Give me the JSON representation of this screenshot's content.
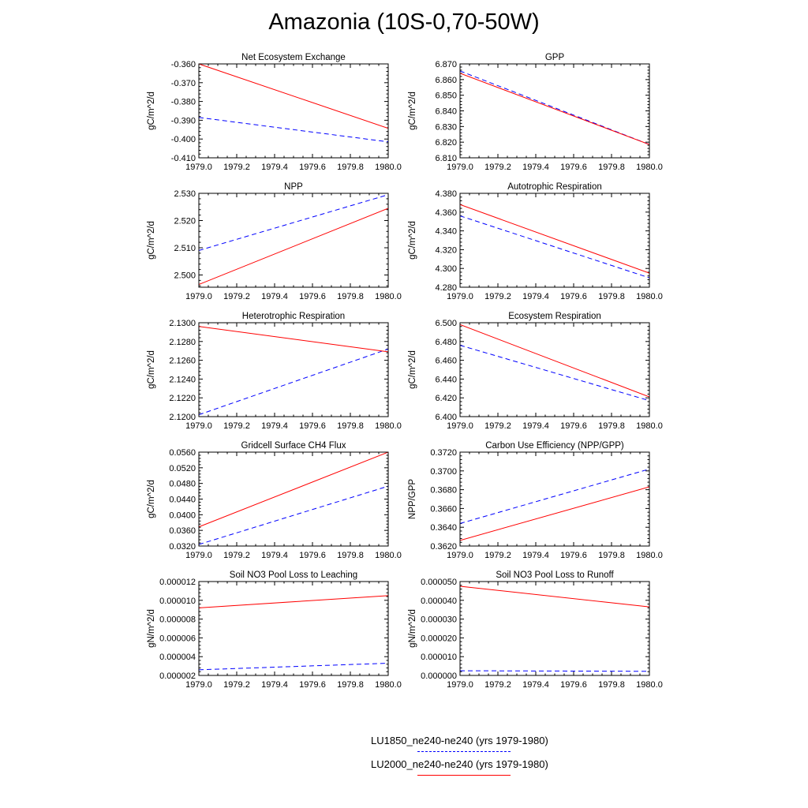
{
  "title": "Amazonia (10S-0,70-50W)",
  "colors": {
    "LU1850": "#0000ff",
    "LU2000": "#ff0000",
    "axis": "#000000"
  },
  "legend": [
    {
      "label": "LU1850_ne240-ne240 (yrs 1979-1980)",
      "color": "#0000ff",
      "style": "dashed"
    },
    {
      "label": "LU2000_ne240-ne240 (yrs 1979-1980)",
      "color": "#ff0000",
      "style": "solid"
    }
  ],
  "chart_data": [
    {
      "type": "line",
      "title": "Net Ecosystem Exchange",
      "ylabel": "gC/m^2/d",
      "xlim": [
        1979.0,
        1980.0
      ],
      "ylim": [
        -0.41,
        -0.36
      ],
      "xticks": [
        "1979.0",
        "1979.2",
        "1979.4",
        "1979.6",
        "1979.8",
        "1980.0"
      ],
      "yticks": [
        "-0.410",
        "-0.400",
        "-0.390",
        "-0.380",
        "-0.370",
        "-0.360"
      ],
      "x": [
        1979.0,
        1980.0
      ],
      "series": [
        {
          "name": "LU1850_ne240-ne240 (yrs 1979-1980)",
          "style": "dashed",
          "values": [
            -0.3885,
            -0.4015
          ]
        },
        {
          "name": "LU2000_ne240-ne240 (yrs 1979-1980)",
          "style": "solid",
          "values": [
            -0.36,
            -0.3943
          ]
        }
      ]
    },
    {
      "type": "line",
      "title": "GPP",
      "ylabel": "gC/m^2/d",
      "xlim": [
        1979.0,
        1980.0
      ],
      "ylim": [
        6.81,
        6.87
      ],
      "xticks": [
        "1979.0",
        "1979.2",
        "1979.4",
        "1979.6",
        "1979.8",
        "1980.0"
      ],
      "yticks": [
        "6.810",
        "6.820",
        "6.830",
        "6.840",
        "6.850",
        "6.860",
        "6.870"
      ],
      "x": [
        1979.0,
        1980.0
      ],
      "series": [
        {
          "name": "LU1850_ne240-ne240 (yrs 1979-1980)",
          "style": "dashed",
          "values": [
            6.8655,
            6.8185
          ]
        },
        {
          "name": "LU2000_ne240-ne240 (yrs 1979-1980)",
          "style": "solid",
          "values": [
            6.864,
            6.8185
          ]
        }
      ]
    },
    {
      "type": "line",
      "title": "NPP",
      "ylabel": "gC/m^2/d",
      "xlim": [
        1979.0,
        1980.0
      ],
      "ylim": [
        2.4955,
        2.53
      ],
      "xticks": [
        "1979.0",
        "1979.2",
        "1979.4",
        "1979.6",
        "1979.8",
        "1980.0"
      ],
      "yticks": [
        "2.500",
        "2.510",
        "2.520",
        "2.530"
      ],
      "x": [
        1979.0,
        1980.0
      ],
      "series": [
        {
          "name": "LU1850_ne240-ne240 (yrs 1979-1980)",
          "style": "dashed",
          "values": [
            2.509,
            2.5295
          ]
        },
        {
          "name": "LU2000_ne240-ne240 (yrs 1979-1980)",
          "style": "solid",
          "values": [
            2.4965,
            2.5245
          ]
        }
      ]
    },
    {
      "type": "line",
      "title": "Autotrophic Respiration",
      "ylabel": "gC/m^2/d",
      "xlim": [
        1979.0,
        1980.0
      ],
      "ylim": [
        4.28,
        4.38
      ],
      "xticks": [
        "1979.0",
        "1979.2",
        "1979.4",
        "1979.6",
        "1979.8",
        "1980.0"
      ],
      "yticks": [
        "4.280",
        "4.300",
        "4.320",
        "4.340",
        "4.360",
        "4.380"
      ],
      "x": [
        1979.0,
        1980.0
      ],
      "series": [
        {
          "name": "LU1850_ne240-ne240 (yrs 1979-1980)",
          "style": "dashed",
          "values": [
            4.356,
            4.29
          ]
        },
        {
          "name": "LU2000_ne240-ne240 (yrs 1979-1980)",
          "style": "solid",
          "values": [
            4.368,
            4.295
          ]
        }
      ]
    },
    {
      "type": "line",
      "title": "Heterotrophic Respiration",
      "ylabel": "gC/m^2/d",
      "xlim": [
        1979.0,
        1980.0
      ],
      "ylim": [
        2.12,
        2.13
      ],
      "xticks": [
        "1979.0",
        "1979.2",
        "1979.4",
        "1979.6",
        "1979.8",
        "1980.0"
      ],
      "yticks": [
        "2.1200",
        "2.1220",
        "2.1240",
        "2.1260",
        "2.1280",
        "2.1300"
      ],
      "x": [
        1979.0,
        1980.0
      ],
      "series": [
        {
          "name": "LU1850_ne240-ne240 (yrs 1979-1980)",
          "style": "dashed",
          "values": [
            2.1202,
            2.1272
          ]
        },
        {
          "name": "LU2000_ne240-ne240 (yrs 1979-1980)",
          "style": "solid",
          "values": [
            2.1296,
            2.1269
          ]
        }
      ]
    },
    {
      "type": "line",
      "title": "Ecosystem Respiration",
      "ylabel": "gC/m^2/d",
      "xlim": [
        1979.0,
        1980.0
      ],
      "ylim": [
        6.4,
        6.5
      ],
      "xticks": [
        "1979.0",
        "1979.2",
        "1979.4",
        "1979.6",
        "1979.8",
        "1980.0"
      ],
      "yticks": [
        "6.400",
        "6.420",
        "6.440",
        "6.460",
        "6.480",
        "6.500"
      ],
      "x": [
        1979.0,
        1980.0
      ],
      "series": [
        {
          "name": "LU1850_ne240-ne240 (yrs 1979-1980)",
          "style": "dashed",
          "values": [
            6.476,
            6.417
          ]
        },
        {
          "name": "LU2000_ne240-ne240 (yrs 1979-1980)",
          "style": "solid",
          "values": [
            6.498,
            6.421
          ]
        }
      ]
    },
    {
      "type": "line",
      "title": "Gridcell Surface CH4 Flux",
      "ylabel": "gC/m^2/d",
      "xlim": [
        1979.0,
        1980.0
      ],
      "ylim": [
        0.032,
        0.056
      ],
      "xticks": [
        "1979.0",
        "1979.2",
        "1979.4",
        "1979.6",
        "1979.8",
        "1980.0"
      ],
      "yticks": [
        "0.0320",
        "0.0360",
        "0.0400",
        "0.0440",
        "0.0480",
        "0.0520",
        "0.0560"
      ],
      "x": [
        1979.0,
        1980.0
      ],
      "series": [
        {
          "name": "LU1850_ne240-ne240 (yrs 1979-1980)",
          "style": "dashed",
          "values": [
            0.0324,
            0.0473
          ]
        },
        {
          "name": "LU2000_ne240-ne240 (yrs 1979-1980)",
          "style": "solid",
          "values": [
            0.0369,
            0.056
          ]
        }
      ]
    },
    {
      "type": "line",
      "title": "Carbon Use Efficiency (NPP/GPP)",
      "ylabel": "NPP/GPP",
      "xlim": [
        1979.0,
        1980.0
      ],
      "ylim": [
        0.362,
        0.372
      ],
      "xticks": [
        "1979.0",
        "1979.2",
        "1979.4",
        "1979.6",
        "1979.8",
        "1980.0"
      ],
      "yticks": [
        "0.3620",
        "0.3640",
        "0.3660",
        "0.3680",
        "0.3700",
        "0.3720"
      ],
      "x": [
        1979.0,
        1980.0
      ],
      "series": [
        {
          "name": "LU1850_ne240-ne240 (yrs 1979-1980)",
          "style": "dashed",
          "values": [
            0.3644,
            0.3702
          ]
        },
        {
          "name": "LU2000_ne240-ne240 (yrs 1979-1980)",
          "style": "solid",
          "values": [
            0.3626,
            0.3683
          ]
        }
      ]
    },
    {
      "type": "line",
      "title": "Soil NO3 Pool Loss to Leaching",
      "ylabel": "gN/m^2/d",
      "xlim": [
        1979.0,
        1980.0
      ],
      "ylim": [
        2e-06,
        1.2e-05
      ],
      "xticks": [
        "1979.0",
        "1979.2",
        "1979.4",
        "1979.6",
        "1979.8",
        "1980.0"
      ],
      "yticks": [
        "0.000002",
        "0.000004",
        "0.000006",
        "0.000008",
        "0.000010",
        "0.000012"
      ],
      "x": [
        1979.0,
        1980.0
      ],
      "series": [
        {
          "name": "LU1850_ne240-ne240 (yrs 1979-1980)",
          "style": "dashed",
          "values": [
            2.6e-06,
            3.3e-06
          ]
        },
        {
          "name": "LU2000_ne240-ne240 (yrs 1979-1980)",
          "style": "solid",
          "values": [
            9.2e-06,
            1.05e-05
          ]
        }
      ]
    },
    {
      "type": "line",
      "title": "Soil NO3 Pool Loss to Runoff",
      "ylabel": "gN/m^2/d",
      "xlim": [
        1979.0,
        1980.0
      ],
      "ylim": [
        0.0,
        5e-05
      ],
      "xticks": [
        "1979.0",
        "1979.2",
        "1979.4",
        "1979.6",
        "1979.8",
        "1980.0"
      ],
      "yticks": [
        "0.000000",
        "0.000010",
        "0.000020",
        "0.000030",
        "0.000040",
        "0.000050"
      ],
      "x": [
        1979.0,
        1980.0
      ],
      "series": [
        {
          "name": "LU1850_ne240-ne240 (yrs 1979-1980)",
          "style": "dashed",
          "values": [
            2.5e-06,
            2.2e-06
          ]
        },
        {
          "name": "LU2000_ne240-ne240 (yrs 1979-1980)",
          "style": "solid",
          "values": [
            4.75e-05,
            3.65e-05
          ]
        }
      ]
    }
  ]
}
